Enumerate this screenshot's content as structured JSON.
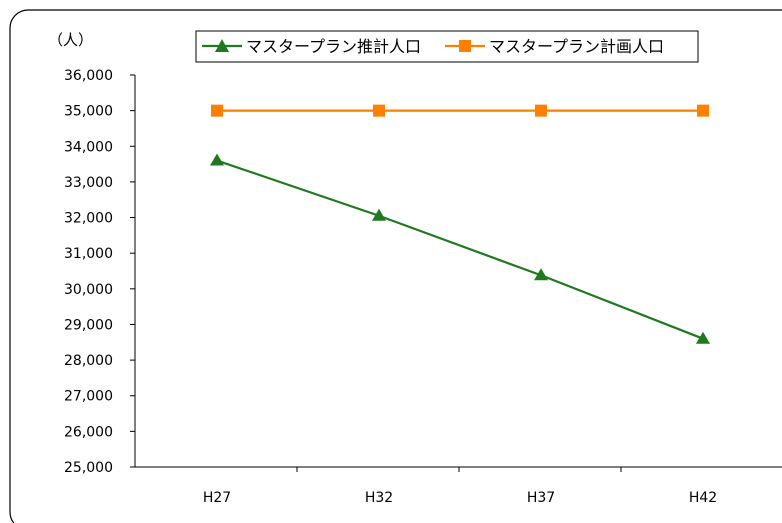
{
  "chart_data": {
    "type": "line",
    "unit_label": "（人）",
    "categories": [
      "H27",
      "H32",
      "H37",
      "H42"
    ],
    "series": [
      {
        "name": "マスタープラン推計人口",
        "values": [
          33600,
          32050,
          30380,
          28600
        ],
        "color": "#1f7a1f",
        "marker": "triangle"
      },
      {
        "name": "マスタープラン計画人口",
        "values": [
          35000,
          35000,
          35000,
          35000
        ],
        "color": "#ff7f00",
        "marker": "square"
      }
    ],
    "ylim": [
      25000,
      36000
    ],
    "y_ticks": [
      "25,000",
      "26,000",
      "27,000",
      "28,000",
      "29,000",
      "30,000",
      "31,000",
      "32,000",
      "33,000",
      "34,000",
      "35,000",
      "36,000"
    ],
    "grid": false,
    "legend": "top"
  }
}
